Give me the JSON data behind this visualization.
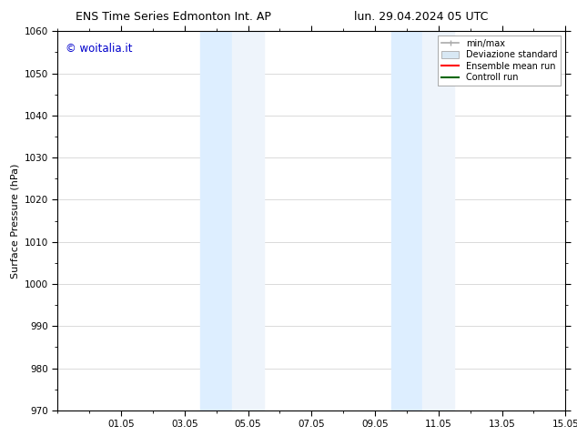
{
  "title_left": "ENS Time Series Edmonton Int. AP",
  "title_right": "lun. 29.04.2024 05 UTC",
  "ylabel": "Surface Pressure (hPa)",
  "ylim": [
    970,
    1060
  ],
  "yticks": [
    970,
    980,
    990,
    1000,
    1010,
    1020,
    1030,
    1040,
    1050,
    1060
  ],
  "xlim": [
    0,
    16
  ],
  "xtick_labels": [
    "01.05",
    "03.05",
    "05.05",
    "07.05",
    "09.05",
    "11.05",
    "13.05",
    "15.05"
  ],
  "xtick_positions": [
    2,
    4,
    6,
    8,
    10,
    12,
    14,
    16
  ],
  "shaded_regions": [
    {
      "xmin": 4.5,
      "xmax": 5.5
    },
    {
      "xmin": 5.5,
      "xmax": 6.5
    },
    {
      "xmin": 10.5,
      "xmax": 11.5
    },
    {
      "xmin": 11.5,
      "xmax": 12.5
    }
  ],
  "shaded_color": "#ddeeff",
  "shaded_color2": "#eef4fb",
  "background_color": "#ffffff",
  "grid_color": "#cccccc",
  "watermark_text": "© woitalia.it",
  "watermark_color": "#0000cc",
  "title_fontsize": 9,
  "axis_fontsize": 8,
  "tick_fontsize": 7.5,
  "legend_fontsize": 7
}
